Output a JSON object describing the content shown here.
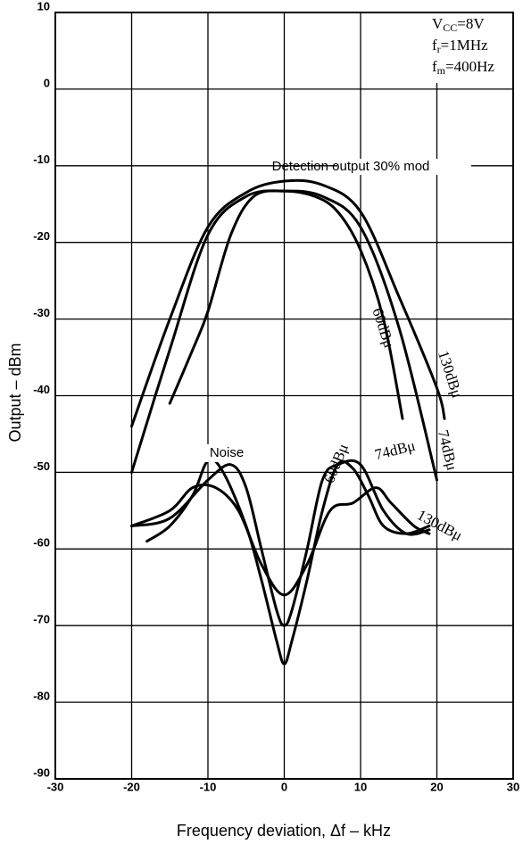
{
  "chart_data": {
    "type": "line",
    "xlabel": "Frequency deviation, Δf – kHz",
    "ylabel": "Output – dBm",
    "xlim": [
      -30,
      30
    ],
    "xticks": [
      -30,
      -20,
      -10,
      0,
      10,
      20,
      30
    ],
    "ylim": [
      -90,
      10
    ],
    "yticks": [
      -90,
      -80,
      -70,
      -60,
      -50,
      -40,
      -30,
      -20,
      -10,
      0,
      10
    ],
    "grid": true,
    "color": "#000000",
    "annotations": [
      "Detection output 30% mod",
      "Noise"
    ],
    "conditions": [
      {
        "symbol": "V",
        "sub": "CC",
        "rest": "=8V"
      },
      {
        "symbol": "f",
        "sub": "r",
        "rest": "=1MHz"
      },
      {
        "symbol": "f",
        "sub": "m",
        "rest": "=400Hz"
      }
    ],
    "series": [
      {
        "name": "60dBμ",
        "color": "#000000",
        "x": [
          -15,
          -12,
          -10,
          -7,
          -4,
          0,
          4,
          7,
          10,
          13,
          15.5
        ],
        "values": [
          -41,
          -34,
          -29,
          -19,
          -14,
          -13.3,
          -14,
          -16,
          -21,
          -30,
          -43
        ]
      },
      {
        "name": "130dBμ",
        "color": "#000000",
        "x": [
          -20,
          -15,
          -10,
          -5,
          0,
          5,
          10,
          15,
          20,
          21
        ],
        "values": [
          -44,
          -30,
          -18,
          -13.5,
          -12,
          -12.5,
          -16,
          -27,
          -39,
          -43
        ]
      },
      {
        "name": "74dBμ",
        "color": "#000000",
        "x": [
          -20,
          -15,
          -10,
          -5,
          0,
          5,
          10,
          15,
          20
        ],
        "values": [
          -50,
          -34,
          -19,
          -14,
          -13.3,
          -14,
          -18,
          -31,
          -51
        ]
      },
      {
        "name": "60dBμ",
        "color": "#000000",
        "x": [
          -18,
          -15,
          -12,
          -10,
          -8,
          -5,
          -3,
          -1,
          0,
          1,
          3,
          5,
          7,
          9,
          11,
          13,
          16,
          19
        ],
        "values": [
          -59,
          -57,
          -53,
          -48.5,
          -50,
          -57,
          -64,
          -72,
          -75,
          -72,
          -64,
          -55,
          -49,
          -49.5,
          -53,
          -57,
          -58,
          -57
        ]
      },
      {
        "name": "74dBμ",
        "color": "#000000",
        "x": [
          -20,
          -15,
          -10,
          -7,
          -5,
          -3,
          -1,
          0,
          1,
          3,
          5,
          7,
          10,
          13,
          16,
          19
        ],
        "values": [
          -57,
          -56,
          -51,
          -49,
          -52,
          -60,
          -68,
          -70,
          -68,
          -60,
          -51,
          -49,
          -49,
          -55,
          -58,
          -57.5
        ]
      },
      {
        "name": "130dBμ",
        "color": "#000000",
        "x": [
          -20,
          -15,
          -12,
          -9,
          -6,
          -3,
          0,
          3,
          6,
          9,
          12,
          14,
          17,
          19
        ],
        "values": [
          -57,
          -55,
          -52,
          -52,
          -55,
          -62,
          -66,
          -62,
          -55,
          -54,
          -52,
          -54,
          -57,
          -58
        ]
      }
    ]
  }
}
